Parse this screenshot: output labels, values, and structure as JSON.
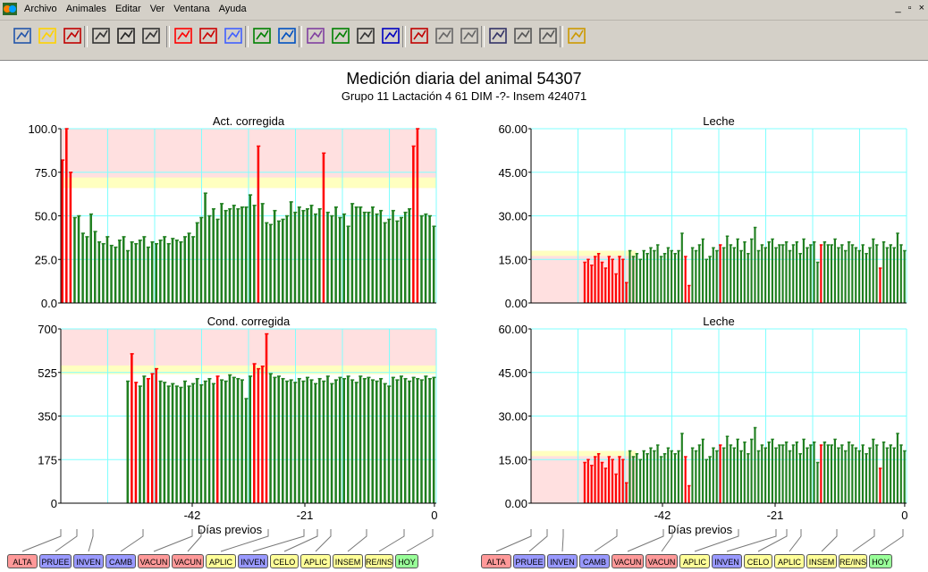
{
  "menu": [
    "Archivo",
    "Animales",
    "Editar",
    "Ver",
    "Ventana",
    "Ayuda"
  ],
  "window_controls": [
    "_",
    "▫",
    "×"
  ],
  "header": {
    "title": "Medición diaria del animal 54307",
    "subtitle": "Grupo 11   Lactación 4     61 DIM  -?-    Insem  424071"
  },
  "toolbar_icons": [
    "select-icon",
    "folder-icon",
    "chart-icon",
    "open-icon",
    "save-icon",
    "print-icon",
    "bar-chart-icon",
    "curve-icon",
    "wave-icon",
    "scatter-icon",
    "bars-icon",
    "cow-icon",
    "tree-icon",
    "pen-icon",
    "hat-icon",
    "chart2-icon",
    "rotate-left-icon",
    "rotate-right-icon",
    "doc-icon",
    "graph-icon",
    "graph2-icon",
    "help-icon"
  ],
  "colors": {
    "bar_green": "#1f7f1f",
    "bar_red": "#ff0000",
    "band_red": "#ffe0e0",
    "band_yellow": "#ffffc0",
    "grid": "#80ffff"
  },
  "x_axis": {
    "label": "Días previos",
    "ticks": [
      "-42",
      "-21",
      "0"
    ]
  },
  "chart_data": [
    {
      "type": "bar",
      "title": "Act. corregida",
      "ylim": [
        0,
        100
      ],
      "yticks": [
        "100.0",
        "75.0",
        "50.0",
        "25.0",
        "0.0"
      ],
      "xticks": [
        "-42",
        "-21",
        "0"
      ],
      "xlabel": "Días previos",
      "values": [
        82,
        100,
        75,
        49,
        50,
        40,
        38,
        51,
        41,
        35,
        34,
        38,
        33,
        32,
        36,
        38,
        30,
        35,
        34,
        36,
        38,
        32,
        35,
        34,
        36,
        38,
        34,
        37,
        36,
        35,
        38,
        40,
        38,
        46,
        49,
        63,
        50,
        54,
        48,
        57,
        53,
        54,
        56,
        54,
        55,
        55,
        62,
        56,
        90,
        57,
        46,
        45,
        53,
        47,
        48,
        50,
        58,
        52,
        55,
        53,
        54,
        56,
        51,
        54,
        86,
        52,
        50,
        55,
        49,
        51,
        44,
        57,
        55,
        55,
        52,
        52,
        55,
        51,
        53,
        46,
        48,
        53,
        47,
        49,
        52,
        54,
        90,
        100,
        50,
        51,
        50,
        44
      ],
      "red_idx": [
        0,
        1,
        2,
        48,
        64,
        86,
        87
      ]
    },
    {
      "type": "bar",
      "title": "Leche",
      "ylim": [
        0,
        60
      ],
      "yticks": [
        "60.00",
        "45.00",
        "30.00",
        "15.00",
        "0.00"
      ],
      "xticks": [
        "-42",
        "-21",
        "0"
      ],
      "xlabel": "Días previos",
      "values": [
        0,
        0,
        0,
        0,
        0,
        0,
        0,
        0,
        0,
        0,
        0,
        0,
        0,
        0,
        0,
        14,
        15,
        13,
        16,
        17,
        14,
        12,
        16,
        15,
        10,
        16,
        15,
        7,
        18,
        16,
        17,
        15,
        18,
        17,
        19,
        18,
        20,
        16,
        17,
        19,
        18,
        17,
        18,
        24,
        16,
        6,
        19,
        18,
        20,
        22,
        15,
        16,
        19,
        18,
        20,
        19,
        23,
        20,
        19,
        22,
        18,
        21,
        17,
        22,
        26,
        18,
        20,
        19,
        21,
        22,
        19,
        20,
        20,
        21,
        18,
        20,
        21,
        17,
        22,
        19,
        20,
        21,
        14,
        20,
        21,
        20,
        20,
        22,
        19,
        20,
        18,
        21,
        20,
        19,
        18,
        20,
        17,
        19,
        22,
        20,
        12,
        21,
        19,
        20,
        19,
        24,
        20,
        18
      ],
      "red_idx": [
        15,
        16,
        17,
        18,
        19,
        20,
        21,
        22,
        23,
        24,
        25,
        26,
        27,
        44,
        45,
        54,
        83,
        100
      ]
    },
    {
      "type": "bar",
      "title": "Cond. corregida",
      "ylim": [
        0,
        700
      ],
      "yticks": [
        "700",
        "525",
        "350",
        "175",
        "0"
      ],
      "xticks": [
        "-42",
        "-21",
        "0"
      ],
      "xlabel": "Días previos",
      "values": [
        0,
        0,
        0,
        0,
        0,
        0,
        0,
        0,
        0,
        0,
        0,
        0,
        0,
        0,
        0,
        0,
        490,
        600,
        485,
        470,
        510,
        500,
        520,
        540,
        490,
        485,
        470,
        480,
        470,
        465,
        490,
        470,
        480,
        500,
        475,
        490,
        500,
        480,
        510,
        495,
        490,
        515,
        505,
        500,
        495,
        420,
        510,
        560,
        540,
        550,
        680,
        520,
        505,
        510,
        500,
        490,
        495,
        485,
        500,
        490,
        505,
        495,
        480,
        500,
        490,
        510,
        480,
        495,
        505,
        500,
        510,
        495,
        485,
        510,
        500,
        505,
        495,
        490,
        500,
        480,
        470,
        505,
        495,
        510,
        500,
        490,
        505,
        500,
        495,
        510,
        500,
        505
      ],
      "red_idx": [
        17,
        18,
        21,
        22,
        23,
        38,
        47,
        48,
        49,
        50
      ]
    },
    {
      "type": "bar",
      "title": "Leche",
      "ylim": [
        0,
        60
      ],
      "yticks": [
        "60.00",
        "45.00",
        "30.00",
        "15.00",
        "0.00"
      ],
      "xticks": [
        "-42",
        "-21",
        "0"
      ],
      "xlabel": "Días previos",
      "values": [
        0,
        0,
        0,
        0,
        0,
        0,
        0,
        0,
        0,
        0,
        0,
        0,
        0,
        0,
        0,
        14,
        15,
        13,
        16,
        17,
        14,
        12,
        16,
        15,
        10,
        16,
        15,
        7,
        18,
        16,
        17,
        15,
        18,
        17,
        19,
        18,
        20,
        16,
        17,
        19,
        18,
        17,
        18,
        24,
        16,
        6,
        19,
        18,
        20,
        22,
        15,
        16,
        19,
        18,
        20,
        19,
        23,
        20,
        19,
        22,
        18,
        21,
        17,
        22,
        26,
        18,
        20,
        19,
        21,
        22,
        19,
        20,
        20,
        21,
        18,
        20,
        21,
        17,
        22,
        19,
        20,
        21,
        14,
        20,
        21,
        20,
        20,
        22,
        19,
        20,
        18,
        21,
        20,
        19,
        18,
        20,
        17,
        19,
        22,
        20,
        12,
        21,
        19,
        20,
        19,
        24,
        20,
        18
      ],
      "red_idx": [
        15,
        16,
        17,
        18,
        19,
        20,
        21,
        22,
        23,
        24,
        25,
        26,
        27,
        44,
        45,
        54,
        83,
        100
      ]
    }
  ],
  "event_buttons": [
    {
      "label": "ALTA",
      "color": "#ff9999"
    },
    {
      "label": "PRUEE",
      "color": "#9999ff"
    },
    {
      "label": "INVEN",
      "color": "#9999ff"
    },
    {
      "label": "CAMB",
      "color": "#9999ff"
    },
    {
      "label": "VACUN",
      "color": "#ff9999"
    },
    {
      "label": "VACUN",
      "color": "#ff9999"
    },
    {
      "label": "APLIC",
      "color": "#ffff99"
    },
    {
      "label": "INVEN",
      "color": "#9999ff"
    },
    {
      "label": "CELO",
      "color": "#ffff99"
    },
    {
      "label": "APLIC",
      "color": "#ffff99"
    },
    {
      "label": "INSEM",
      "color": "#ffff99"
    },
    {
      "label": "RE/INS",
      "color": "#ffff99"
    },
    {
      "label": "HOY",
      "color": "#99ff99"
    }
  ]
}
